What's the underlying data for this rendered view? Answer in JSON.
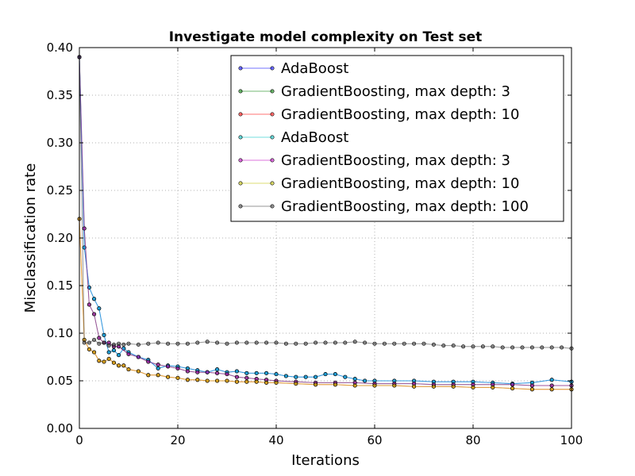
{
  "chart_data": {
    "type": "line",
    "title": "Investigate model complexity on Test set",
    "xlabel": "Iterations",
    "ylabel": "Misclassification rate",
    "xlim": [
      0,
      100
    ],
    "ylim": [
      0.0,
      0.4
    ],
    "xticks": [
      "0",
      "20",
      "40",
      "60",
      "80",
      "100"
    ],
    "yticks": [
      "0.00",
      "0.05",
      "0.10",
      "0.15",
      "0.20",
      "0.25",
      "0.30",
      "0.35",
      "0.40"
    ],
    "grid": true,
    "legend_position": "top-right",
    "series": [
      {
        "name": "AdaBoost",
        "color": "#0000ff",
        "x": [
          0,
          1,
          2,
          3,
          4,
          5,
          6,
          7,
          8,
          9,
          10,
          12,
          14,
          16,
          18,
          20,
          22,
          24,
          26,
          28,
          30,
          32,
          34,
          36,
          38,
          40,
          42,
          44,
          46,
          48,
          50,
          52,
          54,
          56,
          58,
          60,
          64,
          68,
          72,
          76,
          80,
          84,
          88,
          92,
          96,
          100
        ],
        "y": [
          0.39,
          0.19,
          0.148,
          0.136,
          0.126,
          0.098,
          0.08,
          0.082,
          0.077,
          0.084,
          0.08,
          0.075,
          0.072,
          0.063,
          0.066,
          0.065,
          0.063,
          0.061,
          0.059,
          0.062,
          0.059,
          0.06,
          0.058,
          0.058,
          0.058,
          0.057,
          0.055,
          0.054,
          0.054,
          0.054,
          0.057,
          0.057,
          0.054,
          0.052,
          0.05,
          0.05,
          0.05,
          0.05,
          0.049,
          0.049,
          0.049,
          0.048,
          0.047,
          0.048,
          0.051,
          0.049
        ]
      },
      {
        "name": "GradientBoosting, max depth: 3",
        "color": "#008000",
        "x": [
          0,
          1,
          2,
          3,
          4,
          5,
          6,
          7,
          8,
          10,
          12,
          14,
          16,
          18,
          20,
          22,
          24,
          26,
          28,
          30,
          32,
          34,
          36,
          38,
          40,
          44,
          48,
          52,
          56,
          60,
          64,
          68,
          72,
          76,
          80,
          84,
          88,
          92,
          96,
          100
        ],
        "y": [
          0.39,
          0.21,
          0.13,
          0.12,
          0.095,
          0.09,
          0.09,
          0.086,
          0.086,
          0.078,
          0.075,
          0.07,
          0.067,
          0.065,
          0.063,
          0.06,
          0.059,
          0.059,
          0.058,
          0.057,
          0.054,
          0.053,
          0.052,
          0.051,
          0.05,
          0.049,
          0.048,
          0.048,
          0.048,
          0.047,
          0.047,
          0.047,
          0.046,
          0.046,
          0.046,
          0.046,
          0.046,
          0.045,
          0.045,
          0.045
        ]
      },
      {
        "name": "GradientBoosting, max depth: 10",
        "color": "#ff0000",
        "x": [
          0,
          1,
          2,
          3,
          4,
          5,
          6,
          7,
          8,
          9,
          10,
          12,
          14,
          16,
          18,
          20,
          22,
          24,
          26,
          28,
          30,
          32,
          34,
          36,
          38,
          40,
          44,
          48,
          52,
          56,
          60,
          64,
          68,
          72,
          76,
          80,
          84,
          88,
          92,
          96,
          100
        ],
        "y": [
          0.22,
          0.093,
          0.083,
          0.08,
          0.071,
          0.07,
          0.073,
          0.069,
          0.066,
          0.066,
          0.062,
          0.06,
          0.056,
          0.056,
          0.054,
          0.053,
          0.051,
          0.051,
          0.05,
          0.05,
          0.05,
          0.049,
          0.049,
          0.049,
          0.048,
          0.048,
          0.047,
          0.046,
          0.046,
          0.045,
          0.045,
          0.045,
          0.044,
          0.044,
          0.044,
          0.043,
          0.043,
          0.042,
          0.041,
          0.041,
          0.041
        ]
      },
      {
        "name": "AdaBoost",
        "color": "#00bfbf",
        "x": [
          0,
          1,
          2,
          3,
          4,
          5,
          6,
          7,
          8,
          9,
          10,
          12,
          14,
          16,
          18,
          20,
          22,
          24,
          26,
          28,
          30,
          32,
          34,
          36,
          38,
          40,
          42,
          44,
          46,
          48,
          50,
          52,
          54,
          56,
          58,
          60,
          64,
          68,
          72,
          76,
          80,
          84,
          88,
          92,
          96,
          100
        ],
        "y": [
          0.39,
          0.19,
          0.148,
          0.136,
          0.126,
          0.098,
          0.08,
          0.082,
          0.077,
          0.084,
          0.08,
          0.075,
          0.072,
          0.063,
          0.066,
          0.065,
          0.063,
          0.061,
          0.059,
          0.062,
          0.059,
          0.06,
          0.058,
          0.058,
          0.058,
          0.057,
          0.055,
          0.054,
          0.054,
          0.054,
          0.057,
          0.057,
          0.054,
          0.052,
          0.05,
          0.05,
          0.05,
          0.05,
          0.049,
          0.049,
          0.049,
          0.048,
          0.047,
          0.048,
          0.051,
          0.049
        ]
      },
      {
        "name": "GradientBoosting, max depth: 3",
        "color": "#bf00bf",
        "x": [
          0,
          1,
          2,
          3,
          4,
          5,
          6,
          7,
          8,
          10,
          12,
          14,
          16,
          18,
          20,
          22,
          24,
          26,
          28,
          30,
          32,
          34,
          36,
          38,
          40,
          44,
          48,
          52,
          56,
          60,
          64,
          68,
          72,
          76,
          80,
          84,
          88,
          92,
          96,
          100
        ],
        "y": [
          0.39,
          0.21,
          0.13,
          0.12,
          0.095,
          0.09,
          0.09,
          0.086,
          0.086,
          0.078,
          0.075,
          0.07,
          0.067,
          0.065,
          0.063,
          0.06,
          0.059,
          0.059,
          0.058,
          0.057,
          0.054,
          0.053,
          0.052,
          0.051,
          0.05,
          0.049,
          0.048,
          0.048,
          0.048,
          0.047,
          0.047,
          0.047,
          0.046,
          0.046,
          0.046,
          0.046,
          0.046,
          0.045,
          0.045,
          0.045
        ]
      },
      {
        "name": "GradientBoosting, max depth: 10",
        "color": "#bfbf00",
        "x": [
          0,
          1,
          2,
          3,
          4,
          5,
          6,
          7,
          8,
          9,
          10,
          12,
          14,
          16,
          18,
          20,
          22,
          24,
          26,
          28,
          30,
          32,
          34,
          36,
          38,
          40,
          44,
          48,
          52,
          56,
          60,
          64,
          68,
          72,
          76,
          80,
          84,
          88,
          92,
          96,
          100
        ],
        "y": [
          0.22,
          0.093,
          0.083,
          0.08,
          0.071,
          0.07,
          0.073,
          0.069,
          0.066,
          0.066,
          0.062,
          0.06,
          0.056,
          0.056,
          0.054,
          0.053,
          0.051,
          0.051,
          0.05,
          0.05,
          0.05,
          0.049,
          0.049,
          0.049,
          0.048,
          0.048,
          0.047,
          0.046,
          0.046,
          0.045,
          0.045,
          0.045,
          0.044,
          0.044,
          0.044,
          0.043,
          0.043,
          0.042,
          0.041,
          0.041,
          0.041
        ]
      },
      {
        "name": "GradientBoosting, max depth: 100",
        "color": "#404040",
        "x": [
          0,
          1,
          2,
          3,
          4,
          5,
          6,
          7,
          8,
          9,
          10,
          12,
          14,
          16,
          18,
          20,
          22,
          24,
          26,
          28,
          30,
          32,
          34,
          36,
          38,
          40,
          42,
          44,
          46,
          48,
          50,
          52,
          54,
          56,
          58,
          60,
          62,
          64,
          66,
          68,
          70,
          72,
          74,
          76,
          78,
          80,
          82,
          84,
          86,
          88,
          90,
          92,
          94,
          96,
          98,
          100
        ],
        "y": [
          0.39,
          0.09,
          0.09,
          0.093,
          0.089,
          0.09,
          0.087,
          0.088,
          0.089,
          0.088,
          0.089,
          0.088,
          0.089,
          0.09,
          0.089,
          0.089,
          0.089,
          0.09,
          0.091,
          0.09,
          0.089,
          0.09,
          0.09,
          0.09,
          0.09,
          0.09,
          0.089,
          0.089,
          0.089,
          0.09,
          0.09,
          0.09,
          0.09,
          0.091,
          0.09,
          0.089,
          0.089,
          0.089,
          0.089,
          0.089,
          0.089,
          0.088,
          0.087,
          0.087,
          0.086,
          0.086,
          0.086,
          0.086,
          0.085,
          0.085,
          0.085,
          0.085,
          0.085,
          0.085,
          0.085,
          0.084
        ]
      }
    ]
  }
}
